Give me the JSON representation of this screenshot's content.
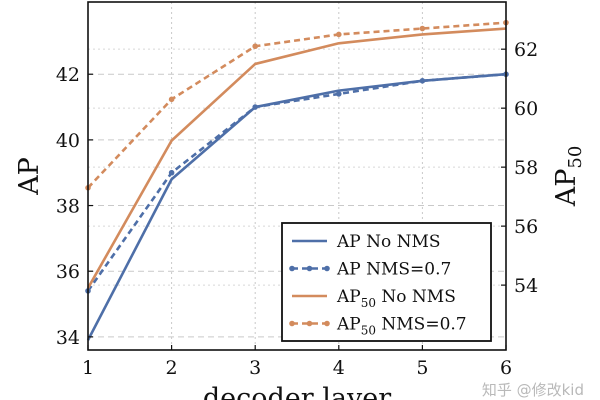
{
  "chart_data": {
    "type": "line",
    "x": [
      1,
      2,
      3,
      4,
      5,
      6
    ],
    "xlabel": "decoder layer",
    "ylabel_left": "AP",
    "ylabel_right_base": "AP",
    "ylabel_right_sub": "50",
    "x_ticks": [
      "1",
      "2",
      "3",
      "4",
      "5",
      "6"
    ],
    "y_left_ticks": [
      "34",
      "36",
      "38",
      "40",
      "42"
    ],
    "y_right_ticks": [
      "54",
      "56",
      "58",
      "60",
      "62"
    ],
    "ylim_left": [
      33.6,
      44.2
    ],
    "ylim_right": [
      51.8,
      63.6
    ],
    "grid": true,
    "legend_placement": "bottom-right",
    "series": [
      {
        "base": "AP",
        "sub": "",
        "tail": "No NMS",
        "axis": "left",
        "color": "#4e6fa8",
        "dashed": false,
        "markers": false,
        "values": [
          33.9,
          38.8,
          41.0,
          41.5,
          41.8,
          42.0
        ]
      },
      {
        "base": "AP",
        "sub": "",
        "tail": "NMS=0.7",
        "axis": "left",
        "color": "#4e6fa8",
        "dashed": true,
        "markers": true,
        "values": [
          35.4,
          39.0,
          41.0,
          41.4,
          41.8,
          42.0
        ]
      },
      {
        "base": "AP",
        "sub": "50",
        "tail": "No NMS",
        "axis": "right",
        "color": "#d38b5d",
        "dashed": false,
        "markers": false,
        "values": [
          53.9,
          58.9,
          61.5,
          62.2,
          62.5,
          62.7
        ]
      },
      {
        "base": "AP",
        "sub": "50",
        "tail": "NMS=0.7",
        "axis": "right",
        "color": "#d38b5d",
        "dashed": true,
        "markers": true,
        "values": [
          57.3,
          60.3,
          62.1,
          62.5,
          62.7,
          62.9
        ]
      }
    ]
  },
  "watermark": "知乎 @修改kid"
}
